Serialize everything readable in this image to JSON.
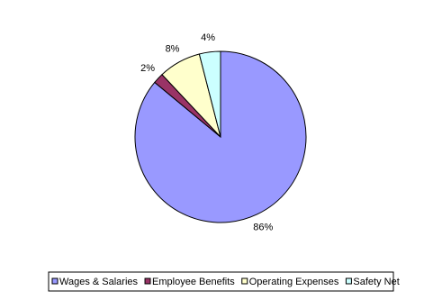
{
  "chart_data": {
    "type": "pie",
    "categories": [
      "Wages & Salaries",
      "Employee Benefits",
      "Operating Expenses",
      "Safety Net"
    ],
    "values": [
      86,
      2,
      8,
      4
    ],
    "value_labels": [
      "86%",
      "2%",
      "8%",
      "4%"
    ],
    "colors": [
      "#9999ff",
      "#993366",
      "#ffffcc",
      "#ccffff"
    ],
    "legend": "bottom"
  }
}
